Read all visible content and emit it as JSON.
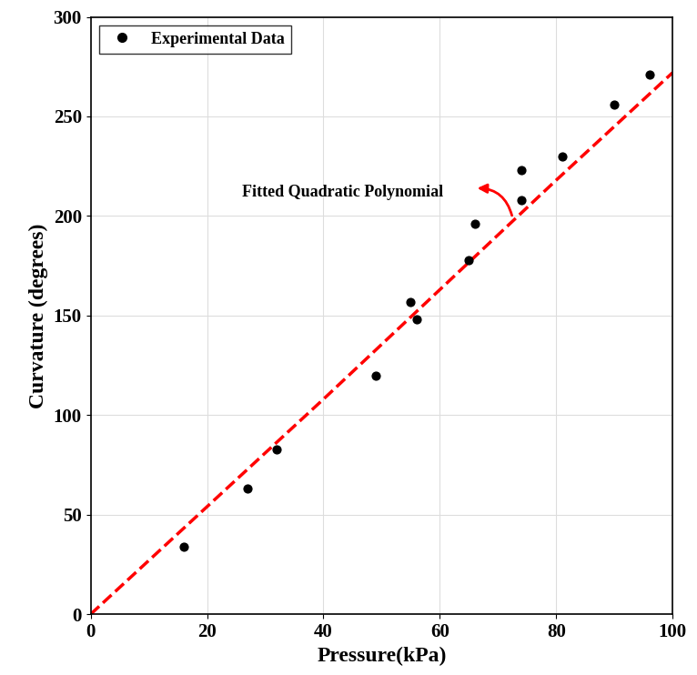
{
  "chart_data": {
    "type": "scatter",
    "x_label": "Pressure(kPa)",
    "y_label": "Curvature (degrees)",
    "annotation": "Fitted Quadratic Polynomial",
    "series": [
      {
        "name": "Experimental Data",
        "type": "scatter",
        "color": "#000000",
        "marker": "o",
        "x": [
          16,
          27,
          32,
          49,
          55,
          56,
          65,
          66,
          74,
          74,
          81,
          90,
          96
        ],
        "values": [
          34,
          63,
          83,
          120,
          157,
          148,
          178,
          196,
          208,
          223,
          230,
          256,
          271
        ]
      },
      {
        "type": "line",
        "color": "#ff0000",
        "line_style": "dashed",
        "x": [
          0,
          20,
          40,
          60,
          80,
          100
        ],
        "values": [
          0,
          54,
          108,
          163,
          218,
          272
        ]
      }
    ],
    "xlim": [
      0,
      100
    ],
    "xticks": [
      0,
      20,
      40,
      60,
      80,
      100
    ],
    "ylim": [
      0,
      300
    ],
    "yticks": [
      0,
      50,
      100,
      150,
      200,
      250,
      300
    ],
    "grid": true,
    "legend": "upper left"
  }
}
